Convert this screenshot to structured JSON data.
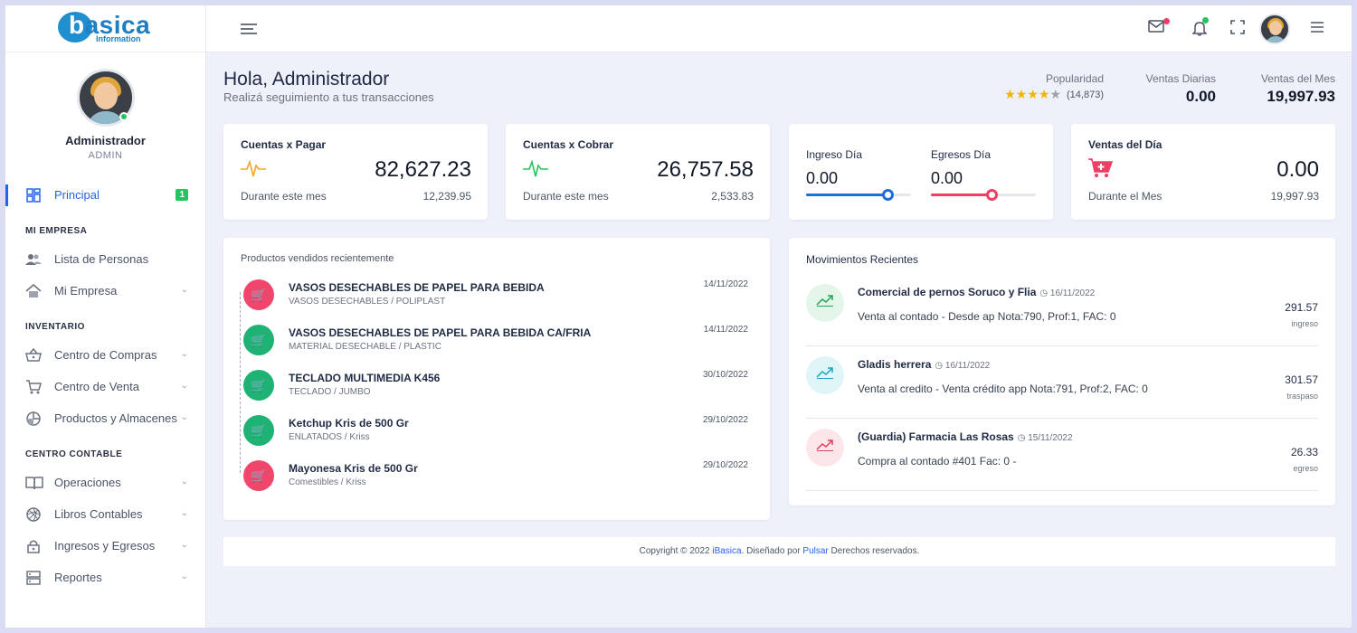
{
  "brand": {
    "logo_b": "b",
    "logo_rest": "asica",
    "logo_sub": "Information"
  },
  "user": {
    "name": "Administrador",
    "role": "ADMIN"
  },
  "sidebar": {
    "principal": {
      "label": "Principal",
      "badge": "1"
    },
    "sections": {
      "empresa": "MI EMPRESA",
      "inventario": "INVENTARIO",
      "contable": "CENTRO CONTABLE"
    },
    "items": {
      "personas": "Lista de Personas",
      "mi_empresa": "Mi Empresa",
      "compras": "Centro de Compras",
      "venta": "Centro de Venta",
      "productos": "Productos y Almacenes",
      "operaciones": "Operaciones",
      "libros": "Libros Contables",
      "ingresos": "Ingresos y Egresos",
      "reportes": "Reportes"
    }
  },
  "greeting": {
    "title": "Hola, Administrador",
    "subtitle": "Realizá seguimiento a tus transacciones"
  },
  "stats": {
    "popularity_label": "Popularidad",
    "popularity_rating": 4,
    "popularity_count": "(14,873)",
    "daily_label": "Ventas Diarias",
    "daily_value": "0.00",
    "monthly_label": "Ventas del Mes",
    "monthly_value": "19,997.93"
  },
  "kpis": {
    "pagar": {
      "title": "Cuentas x Pagar",
      "value": "82,627.23",
      "foot_label": "Durante este mes",
      "foot_value": "12,239.95",
      "icon": "pulse-icon",
      "color": "#f5a623"
    },
    "cobrar": {
      "title": "Cuentas x Cobrar",
      "value": "26,757.58",
      "foot_label": "Durante este mes",
      "foot_value": "2,533.83",
      "icon": "pulse-icon",
      "color": "#22c55e"
    },
    "ingreso": {
      "label": "Ingreso Día",
      "value": "0.00",
      "level": 0.78,
      "color": "#1d6fd6"
    },
    "egreso": {
      "label": "Egresos Día",
      "value": "0.00",
      "level": 0.58,
      "color": "#ef3e64"
    },
    "ventas": {
      "title": "Ventas del Día",
      "value": "0.00",
      "foot_label": "Durante el Mes",
      "foot_value": "19,997.93",
      "icon": "cart-plus-icon",
      "color": "#ef3e64"
    }
  },
  "products": {
    "title": "Productos vendidos recientemente",
    "items": [
      {
        "name": "VASOS DESECHABLES DE PAPEL PARA BEBIDA",
        "sub": "VASOS DESECHABLES / POLIPLAST",
        "date": "14/11/2022",
        "color": "red"
      },
      {
        "name": "VASOS DESECHABLES DE PAPEL PARA BEBIDA CA/FRIA",
        "sub": "MATERIAL DESECHABLE / PLASTIC",
        "date": "14/11/2022",
        "color": "green"
      },
      {
        "name": "TECLADO MULTIMEDIA K456",
        "sub": "TECLADO / JUMBO",
        "date": "30/10/2022",
        "color": "green"
      },
      {
        "name": "Ketchup Kris de 500 Gr",
        "sub": "ENLATADOS / Kriss",
        "date": "29/10/2022",
        "color": "green"
      },
      {
        "name": "Mayonesa Kris de 500 Gr",
        "sub": "Comestibles / Kriss",
        "date": "29/10/2022",
        "color": "red"
      }
    ]
  },
  "movements": {
    "title": "Movimientos Recientes",
    "items": [
      {
        "title": "Comercial de pernos Soruco y Flia",
        "date": "16/11/2022",
        "desc": "Venta al contado - Desde ap Nota:790, Prof:1, FAC: 0",
        "amount": "291.57",
        "type": "ingreso",
        "bg": "#e3f6e9",
        "fg": "#22a45a"
      },
      {
        "title": "Gladis herrera",
        "date": "16/11/2022",
        "desc": "Venta al credito - Venta crédito app Nota:791, Prof:2, FAC: 0",
        "amount": "301.57",
        "type": "traspaso",
        "bg": "#dff5f7",
        "fg": "#1aa7b8"
      },
      {
        "title": "(Guardia) Farmacia Las Rosas",
        "date": "15/11/2022",
        "desc": "Compra al contado #401 Fac: 0 -",
        "amount": "26.33",
        "type": "egreso",
        "bg": "#fde6ea",
        "fg": "#e0415f"
      }
    ]
  },
  "footer": {
    "prefix": "Copyright © 2022 ",
    "brand": "iBasica",
    "middle": ". Diseñado por ",
    "author": "Pulsar",
    "suffix": " Derechos reservados."
  }
}
